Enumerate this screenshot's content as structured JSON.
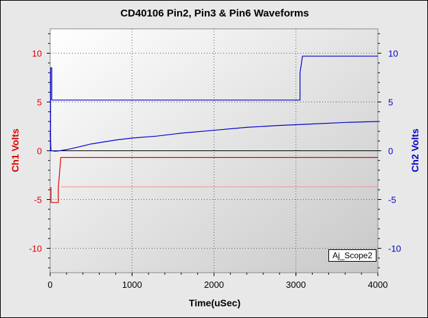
{
  "chart_data": {
    "type": "line",
    "title": "CD40106 Pin2, Pin3 & Pin6 Waveforms",
    "xlabel": "Time(uSec)",
    "ylabel_left": "Ch1 Volts",
    "ylabel_right": "Ch2 Volts",
    "xlim": [
      0,
      4000
    ],
    "ylim": [
      -12.5,
      12.5
    ],
    "x_ticks": [
      "0",
      "1000",
      "2000",
      "3000",
      "4000"
    ],
    "y_ticks_left": [
      "10",
      "5",
      "0",
      "-5",
      "-10"
    ],
    "y_ticks_right": [
      "10",
      "5",
      "0",
      "-5",
      "-10"
    ],
    "grid": true,
    "annotation": "Aj_Scope2",
    "colors": {
      "ch1": "#dd0000",
      "ch2": "#0000cc",
      "ch1_faint": "#f0a0a0",
      "zero_line": "#000000"
    },
    "series": [
      {
        "axis": "left",
        "x": [
          0,
          10,
          10,
          100,
          100,
          130,
          4000
        ],
        "y": [
          -3.8,
          -3.8,
          -5.3,
          -5.3,
          -3.8,
          -0.7,
          -0.7
        ]
      },
      {
        "axis": "left",
        "x": [
          130,
          4000
        ],
        "y": [
          -3.7,
          -3.7
        ]
      },
      {
        "axis": "right",
        "x": [
          0,
          5,
          5,
          20,
          20,
          3050,
          3050,
          3080,
          4000
        ],
        "y": [
          0,
          0,
          8.5,
          8.5,
          5.2,
          5.2,
          8.0,
          9.7,
          9.7
        ]
      },
      {
        "axis": "right",
        "x": [
          0,
          10,
          20,
          60,
          120,
          250,
          500,
          800,
          1000,
          1300,
          1600,
          2000,
          2400,
          2800,
          3200,
          3600,
          4000
        ],
        "y": [
          1.8,
          0.0,
          0.0,
          -0.05,
          0.0,
          0.2,
          0.7,
          1.1,
          1.3,
          1.5,
          1.8,
          2.1,
          2.4,
          2.6,
          2.75,
          2.9,
          3.0
        ]
      }
    ]
  }
}
